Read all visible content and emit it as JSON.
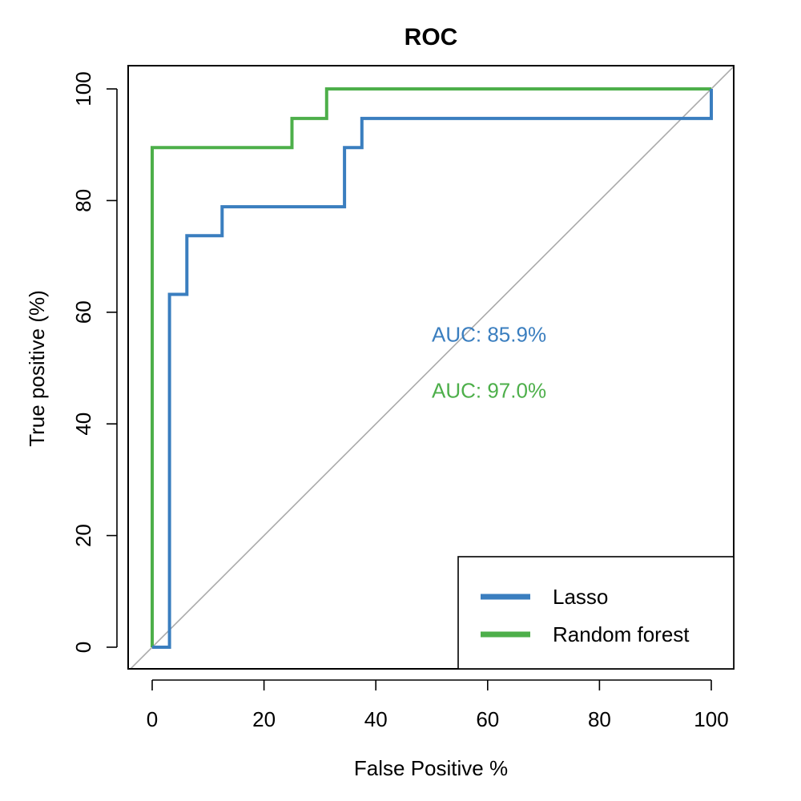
{
  "chart_data": {
    "type": "line",
    "title": "ROC",
    "xlabel": "False Positive %",
    "ylabel": "True positive (%)",
    "xlim": [
      0,
      100
    ],
    "ylim": [
      0,
      100
    ],
    "xticks": [
      "0",
      "20",
      "40",
      "60",
      "80",
      "100"
    ],
    "yticks": [
      "0",
      "20",
      "40",
      "60",
      "80",
      "100"
    ],
    "grid": false,
    "legend_position": "bottom-right",
    "series": [
      {
        "name": "Lasso",
        "color": "#3a7ebf",
        "x": [
          0,
          3.1,
          3.1,
          6.2,
          6.2,
          12.5,
          12.5,
          34.4,
          34.4,
          37.5,
          37.5,
          100,
          100
        ],
        "y": [
          0,
          0,
          63.2,
          63.2,
          73.7,
          73.7,
          78.9,
          78.9,
          89.5,
          89.5,
          94.7,
          94.7,
          100
        ]
      },
      {
        "name": "Random forest",
        "color": "#4daf4a",
        "x": [
          0,
          0,
          25,
          25,
          31.2,
          31.2,
          100
        ],
        "y": [
          0,
          89.5,
          89.5,
          94.7,
          94.7,
          100,
          100
        ]
      }
    ],
    "reference_line": {
      "x": [
        0,
        100
      ],
      "y": [
        0,
        100
      ],
      "color": "#aaaaaa"
    },
    "annotations": [
      {
        "text": "AUC: 85.9%",
        "color": "#3a7ebf"
      },
      {
        "text": "AUC: 97.0%",
        "color": "#4daf4a"
      }
    ]
  }
}
